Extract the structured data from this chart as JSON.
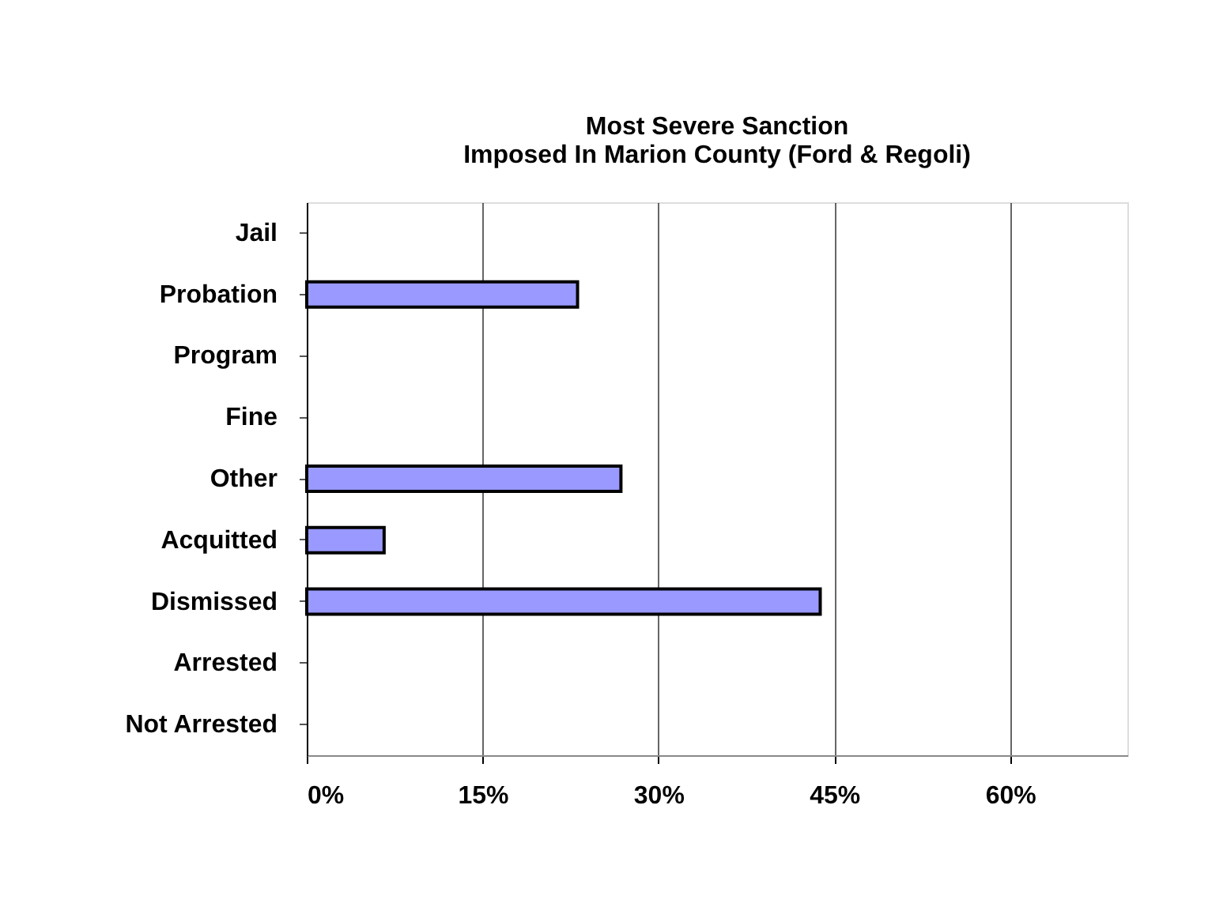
{
  "chart_data": {
    "type": "bar",
    "orientation": "horizontal",
    "title": [
      "Most Severe Sanction",
      "Imposed In Marion County (Ford & Regoli)"
    ],
    "categories": [
      "Jail",
      "Probation",
      "Program",
      "Fine",
      "Other",
      "Acquitted",
      "Dismissed",
      "Arrested",
      "Not Arrested"
    ],
    "values": [
      0,
      23.1,
      0,
      0,
      26.8,
      6.6,
      43.8,
      0,
      0
    ],
    "color": "#9999ff",
    "xlim": [
      0,
      70
    ],
    "xticks": [
      {
        "value": 0,
        "label": "0%"
      },
      {
        "value": 15,
        "label": "15%"
      },
      {
        "value": 30,
        "label": "30%"
      },
      {
        "value": 45,
        "label": "45%"
      },
      {
        "value": 60,
        "label": "60%"
      }
    ],
    "grid": "x"
  }
}
